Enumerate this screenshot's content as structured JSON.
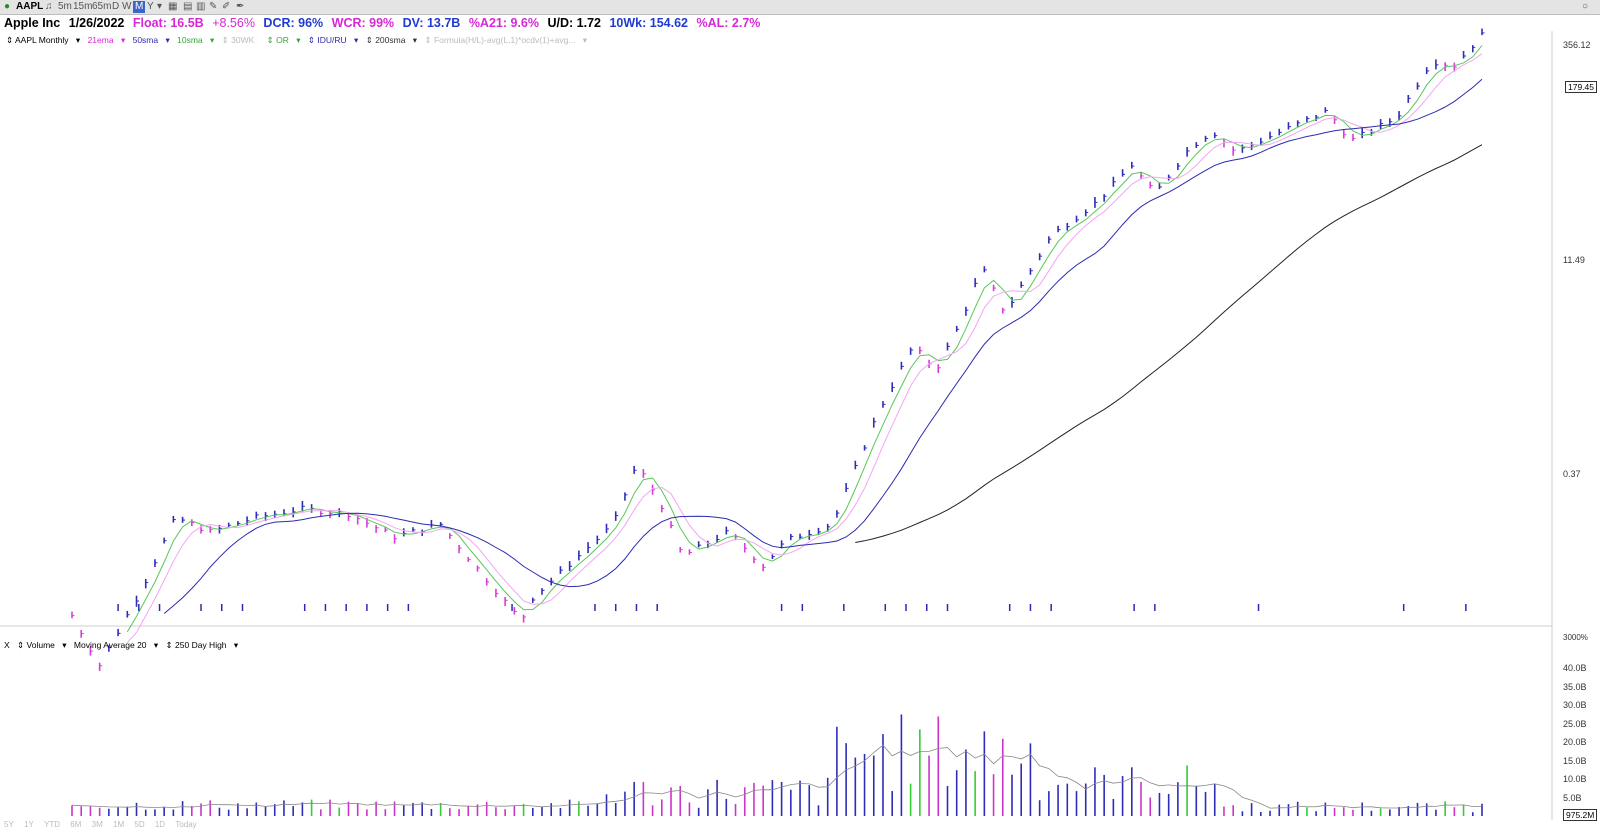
{
  "toolbar": {
    "symbol": "AAPL",
    "intervals": [
      "5m",
      "15m",
      "65m",
      "D",
      "W",
      "M",
      "Y"
    ],
    "active_interval": "M"
  },
  "info": {
    "name": "Apple Inc",
    "date": "1/26/2022",
    "float": "Float: 16.5B",
    "change": "+8.56%",
    "dcr": "DCR: 96%",
    "wcr": "WCR: 99%",
    "dv": "DV: 13.7B",
    "a21": "%A21: 9.6%",
    "ud": "U/D: 1.72",
    "wk10": "10Wk: 154.62",
    "al": "%AL: 2.7%"
  },
  "studies": {
    "symbol_tf": "AAPL Monthly",
    "ema21": "21ema",
    "sma50": "50sma",
    "sma10": "10sma",
    "sma30": "30WK",
    "or": "OR",
    "idu": "IDU/RU",
    "sma200": "200sma",
    "formula": "Formula(H/L)-avg(L,1)*ocdv(1)+avg..."
  },
  "volume_studies": {
    "close": "X",
    "volume": "Volume",
    "ma20": "Moving Average 20",
    "high250": "250 Day High"
  },
  "price_axis": {
    "labels": [
      "356.12",
      "11.49",
      "0.37"
    ],
    "last_price": "179.45",
    "scale_pct": "3000%"
  },
  "volume_axis": {
    "labels": [
      "40.0B",
      "35.0B",
      "30.0B",
      "25.0B",
      "20.0B",
      "15.0B",
      "10.0B",
      "5.0B"
    ],
    "last_volume": "975.2M"
  },
  "bottom_ranges": [
    "5Y",
    "1Y",
    "YTD",
    "6M",
    "3M",
    "1M",
    "5D",
    "1D",
    "Today"
  ],
  "chart_data": {
    "type": "bar",
    "title": "AAPL Monthly",
    "y_scale": "log",
    "up_color": "#2d2db8",
    "down_color": "#d63cd6",
    "ema21_color": "#f2a6f2",
    "sma10_color": "#58c858",
    "sma50_color": "#2b2bb0",
    "sma200_color": "#222222",
    "volume_up_color": "#2d2db8",
    "volume_down_color": "#cc33cc",
    "volume_high_color": "#33cc33",
    "volume_ma_color": "#888888",
    "price_log_range": [
      0.2,
      400
    ],
    "price_anchor_points": [
      {
        "t": 0,
        "p": 0.14
      },
      {
        "t": 12,
        "p": 0.07
      },
      {
        "t": 30,
        "p": 0.2
      },
      {
        "t": 45,
        "p": 0.55
      },
      {
        "t": 60,
        "p": 0.45
      },
      {
        "t": 80,
        "p": 0.55
      },
      {
        "t": 100,
        "p": 0.62
      },
      {
        "t": 120,
        "p": 0.58
      },
      {
        "t": 140,
        "p": 0.42
      },
      {
        "t": 160,
        "p": 0.5
      },
      {
        "t": 175,
        "p": 0.28
      },
      {
        "t": 195,
        "p": 0.13
      },
      {
        "t": 200,
        "p": 0.18
      },
      {
        "t": 235,
        "p": 0.5
      },
      {
        "t": 245,
        "p": 1.15
      },
      {
        "t": 255,
        "p": 0.7
      },
      {
        "t": 265,
        "p": 0.32
      },
      {
        "t": 285,
        "p": 0.45
      },
      {
        "t": 300,
        "p": 0.28
      },
      {
        "t": 310,
        "p": 0.4
      },
      {
        "t": 330,
        "p": 0.5
      },
      {
        "t": 350,
        "p": 2.4
      },
      {
        "t": 365,
        "p": 6
      },
      {
        "t": 375,
        "p": 4.3
      },
      {
        "t": 385,
        "p": 8
      },
      {
        "t": 395,
        "p": 18
      },
      {
        "t": 405,
        "p": 9.5
      },
      {
        "t": 425,
        "p": 28
      },
      {
        "t": 445,
        "p": 45
      },
      {
        "t": 460,
        "p": 75
      },
      {
        "t": 470,
        "p": 50
      },
      {
        "t": 485,
        "p": 95
      },
      {
        "t": 495,
        "p": 120
      },
      {
        "t": 505,
        "p": 90
      },
      {
        "t": 525,
        "p": 120
      },
      {
        "t": 545,
        "p": 160
      },
      {
        "t": 555,
        "p": 105
      },
      {
        "t": 575,
        "p": 145
      },
      {
        "t": 590,
        "p": 320
      },
      {
        "t": 600,
        "p": 300
      },
      {
        "t": 612,
        "p": 460
      }
    ],
    "volume_range": [
      0,
      40
    ]
  }
}
